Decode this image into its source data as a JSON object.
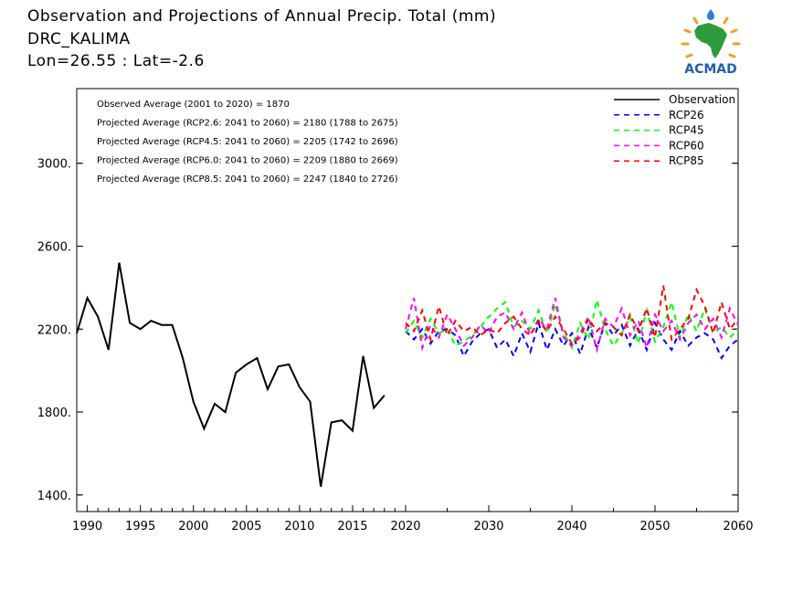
{
  "header": {
    "line1": "Observation and Projections of Annual Precip. Total (mm)",
    "line2": "DRC_KALIMA",
    "line3": "Lon=26.55 : Lat=-2.6"
  },
  "logo": {
    "text": "ACMAD",
    "icon": "africa-map-sun-logo"
  },
  "colors": {
    "observation": "#000000",
    "RCP26": "#0000ff",
    "RCP45": "#00ff00",
    "RCP60": "#ff00ff",
    "RCP85": "#ff0000"
  },
  "chart_data": {
    "type": "line",
    "annotations": [
      "Observed Average (2001 to 2020) = 1870",
      "Projected Average (RCP2.6: 2041 to 2060) = 2180 (1788 to 2675)",
      "Projected Average (RCP4.5: 2041 to 2060) = 2205 (1742 to 2696)",
      "Projected Average (RCP6.0: 2041 to 2060) = 2209 (1880 to 2669)",
      "Projected Average (RCP8.5: 2041 to 2060) = 2247 (1840 to 2726)"
    ],
    "xlim": [
      1989,
      2060
    ],
    "ylim": [
      1320,
      3360
    ],
    "x_ticks": [
      "1990",
      "1995",
      "2000",
      "2005",
      "2010",
      "2015",
      "2020",
      "2030",
      "2040",
      "2050",
      "2060"
    ],
    "y_ticks": [
      "1400.",
      "1800.",
      "2200.",
      "2600.",
      "3000."
    ],
    "legend_position": "top-right",
    "grid": false,
    "series": [
      {
        "name": "Observation",
        "style": "solid",
        "x": [
          1989,
          1990,
          1991,
          1992,
          1993,
          1994,
          1995,
          1996,
          1997,
          1998,
          1999,
          2000,
          2001,
          2002,
          2003,
          2004,
          2005,
          2006,
          2007,
          2008,
          2009,
          2010,
          2011,
          2012,
          2013,
          2014,
          2015,
          2016,
          2017,
          2018,
          2019
        ],
        "values": [
          2180,
          2350,
          2260,
          2100,
          2520,
          2230,
          2200,
          2240,
          2220,
          2220,
          2060,
          1850,
          1720,
          1840,
          1800,
          1990,
          2030,
          2060,
          1910,
          2020,
          2030,
          1920,
          1850,
          1440,
          1750,
          1760,
          1710,
          2070,
          1820,
          1880,
          null
        ]
      },
      {
        "name": "RCP26",
        "style": "dashed",
        "x": [
          2020,
          2021,
          2022,
          2023,
          2024,
          2025,
          2026,
          2027,
          2028,
          2029,
          2030,
          2031,
          2032,
          2033,
          2034,
          2035,
          2036,
          2037,
          2038,
          2039,
          2040,
          2041,
          2042,
          2043,
          2044,
          2045,
          2046,
          2047,
          2048,
          2049,
          2050,
          2051,
          2052,
          2053,
          2054,
          2055,
          2056,
          2057,
          2058,
          2059,
          2060
        ],
        "values": [
          2190,
          2150,
          2200,
          2130,
          2190,
          2200,
          2170,
          2070,
          2140,
          2180,
          2200,
          2110,
          2150,
          2070,
          2180,
          2090,
          2230,
          2100,
          2200,
          2120,
          2180,
          2080,
          2210,
          2110,
          2230,
          2170,
          2220,
          2120,
          2200,
          2100,
          2230,
          2150,
          2100,
          2190,
          2120,
          2160,
          2180,
          2150,
          2060,
          2120,
          2150
        ]
      },
      {
        "name": "RCP45",
        "style": "dashed",
        "x": [
          2020,
          2021,
          2022,
          2023,
          2024,
          2025,
          2026,
          2027,
          2028,
          2029,
          2030,
          2031,
          2032,
          2033,
          2034,
          2035,
          2036,
          2037,
          2038,
          2039,
          2040,
          2041,
          2042,
          2043,
          2044,
          2045,
          2046,
          2047,
          2048,
          2049,
          2050,
          2051,
          2052,
          2053,
          2054,
          2055,
          2056,
          2057,
          2058,
          2059,
          2060
        ],
        "values": [
          2180,
          2240,
          2160,
          2250,
          2180,
          2200,
          2120,
          2140,
          2170,
          2210,
          2260,
          2300,
          2330,
          2210,
          2240,
          2200,
          2290,
          2180,
          2320,
          2180,
          2110,
          2230,
          2150,
          2340,
          2200,
          2120,
          2180,
          2260,
          2130,
          2290,
          2140,
          2210,
          2330,
          2160,
          2270,
          2190,
          2300,
          2180,
          2210,
          2160,
          2200
        ]
      },
      {
        "name": "RCP60",
        "style": "dashed",
        "x": [
          2020,
          2021,
          2022,
          2023,
          2024,
          2025,
          2026,
          2027,
          2028,
          2029,
          2030,
          2031,
          2032,
          2033,
          2034,
          2035,
          2036,
          2037,
          2038,
          2039,
          2040,
          2041,
          2042,
          2043,
          2044,
          2045,
          2046,
          2047,
          2048,
          2049,
          2050,
          2051,
          2052,
          2053,
          2054,
          2055,
          2056,
          2057,
          2058,
          2059,
          2060
        ],
        "values": [
          2200,
          2350,
          2110,
          2220,
          2160,
          2270,
          2200,
          2120,
          2160,
          2220,
          2180,
          2260,
          2280,
          2200,
          2280,
          2170,
          2250,
          2200,
          2350,
          2160,
          2120,
          2180,
          2260,
          2100,
          2250,
          2210,
          2300,
          2170,
          2240,
          2110,
          2270,
          2190,
          2240,
          2150,
          2230,
          2270,
          2200,
          2250,
          2160,
          2300,
          2220
        ]
      },
      {
        "name": "RCP85",
        "style": "dashed",
        "x": [
          2020,
          2021,
          2022,
          2023,
          2024,
          2025,
          2026,
          2027,
          2028,
          2029,
          2030,
          2031,
          2032,
          2033,
          2034,
          2035,
          2036,
          2037,
          2038,
          2039,
          2040,
          2041,
          2042,
          2043,
          2044,
          2045,
          2046,
          2047,
          2048,
          2049,
          2050,
          2051,
          2052,
          2053,
          2054,
          2055,
          2056,
          2057,
          2058,
          2059,
          2060
        ],
        "values": [
          2230,
          2190,
          2290,
          2150,
          2310,
          2170,
          2240,
          2190,
          2210,
          2170,
          2200,
          2180,
          2230,
          2260,
          2200,
          2170,
          2240,
          2190,
          2260,
          2200,
          2130,
          2160,
          2250,
          2190,
          2230,
          2210,
          2170,
          2270,
          2190,
          2300,
          2160,
          2410,
          2150,
          2200,
          2250,
          2390,
          2310,
          2180,
          2330,
          2200,
          2250
        ]
      }
    ]
  }
}
